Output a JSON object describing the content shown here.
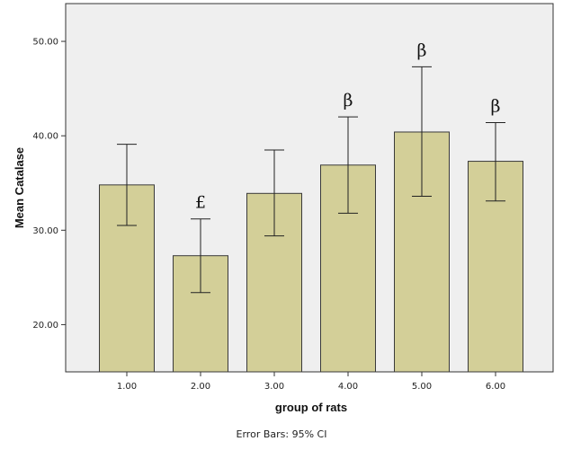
{
  "chart_data": {
    "type": "bar",
    "categories": [
      "1.00",
      "2.00",
      "3.00",
      "4.00",
      "5.00",
      "6.00"
    ],
    "values": [
      34.8,
      27.3,
      33.9,
      36.9,
      40.4,
      37.3
    ],
    "error_bars": {
      "type": "95% CI",
      "lower": [
        30.5,
        23.4,
        29.4,
        31.8,
        33.6,
        33.1
      ],
      "upper": [
        39.1,
        31.2,
        38.5,
        42.0,
        47.3,
        41.4
      ]
    },
    "annotations": [
      "",
      "£",
      "",
      "β",
      "β",
      "β"
    ],
    "xlabel": "group of rats",
    "ylabel": "Mean Catalase",
    "yticks": [
      "20.00",
      "30.00",
      "40.00",
      "50.00"
    ],
    "ylim": [
      15,
      54
    ],
    "footnote": "Error Bars: 95% CI",
    "grid": false,
    "colors": {
      "bar_fill": "#d3cf98",
      "bar_stroke": "#3a3a3a",
      "plot_bg": "#efefef",
      "error_bar": "#222222"
    }
  }
}
